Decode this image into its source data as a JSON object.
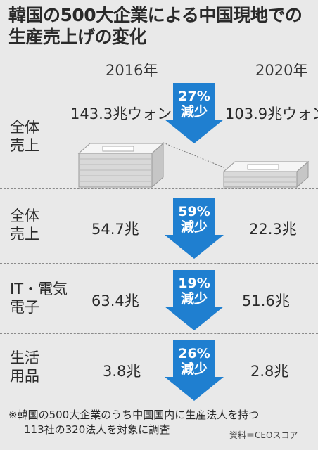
{
  "title": {
    "line1": "韓国の500大企業による中国現地での",
    "line2": "生産売上げの変化"
  },
  "years": [
    "2016年",
    "2020年"
  ],
  "rows": [
    {
      "label_line1": "全体",
      "label_line2": "売上",
      "value_2016": "143.3兆ウォン",
      "value_2020": "103.9兆ウォン",
      "change_pct": "27%",
      "change_word": "減少",
      "icon": "stack-of-cash-icon"
    },
    {
      "label_line1": "全体",
      "label_line2": "売上",
      "value_2016": "54.7兆",
      "value_2020": "22.3兆",
      "change_pct": "59%",
      "change_word": "減少"
    },
    {
      "label_line1": "IT・電気",
      "label_line2": "電子",
      "value_2016": "63.4兆",
      "value_2020": "51.6兆",
      "change_pct": "19%",
      "change_word": "減少"
    },
    {
      "label_line1": "生活",
      "label_line2": "用品",
      "value_2016": "3.8兆",
      "value_2020": "2.8兆",
      "change_pct": "26%",
      "change_word": "減少"
    }
  ],
  "footnote": {
    "line1": "※韓国の500大企業のうち中国国内に生産法人を持つ",
    "line2": "113社の320法人を対象に調査"
  },
  "source": "資料＝CEOスコア",
  "colors": {
    "background": "#e9e9e9",
    "arrow": "#1f7fd0",
    "arrow_text": "#ffffff"
  },
  "chart_data": {
    "type": "table",
    "columns": [
      "2016年",
      "2020年"
    ],
    "rows": [
      {
        "category": "全体売上",
        "values": [
          143.3,
          103.9
        ],
        "unit": "兆ウォン",
        "change": "27%減少"
      },
      {
        "category": "全体売上",
        "values": [
          54.7,
          22.3
        ],
        "unit": "兆",
        "change": "59%減少"
      },
      {
        "category": "IT・電気電子",
        "values": [
          63.4,
          51.6
        ],
        "unit": "兆",
        "change": "19%減少"
      },
      {
        "category": "生活用品",
        "values": [
          3.8,
          2.8
        ],
        "unit": "兆",
        "change": "26%減少"
      }
    ]
  }
}
